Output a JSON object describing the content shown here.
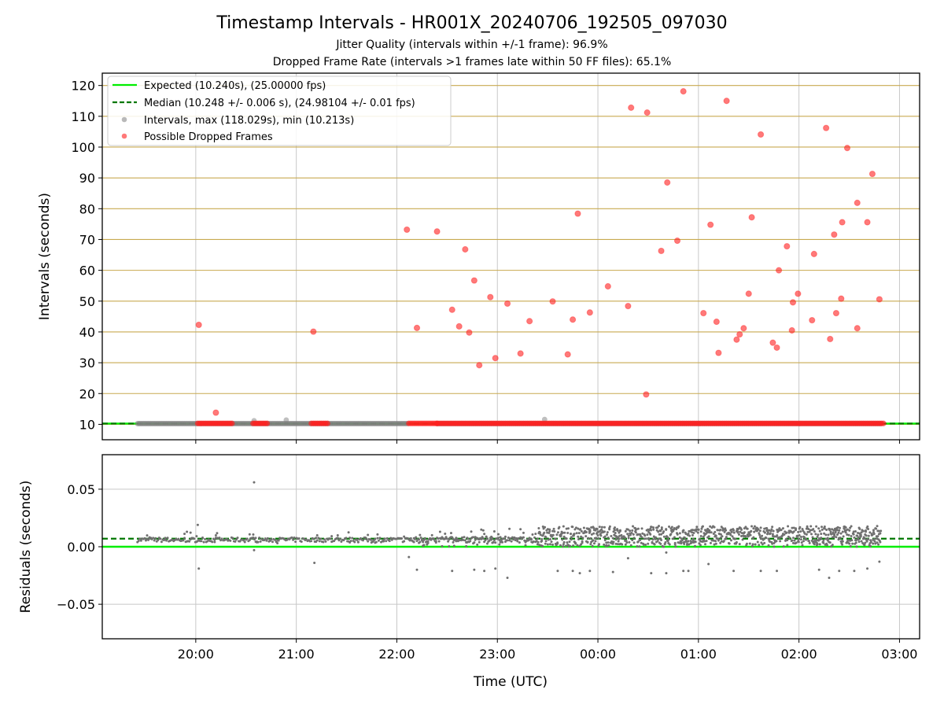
{
  "chart_data": {
    "type": "scatter",
    "title": "Timestamp Intervals - HR001X_20240706_192505_097030",
    "subtitle_1": "Jitter Quality (intervals within +/-1 frame): 96.9%",
    "subtitle_2": "Dropped Frame Rate (intervals >1 frames late within 50 FF files): 65.1%",
    "xlabel": "Time (UTC)",
    "x_ticks": [
      "20:00",
      "21:00",
      "22:00",
      "23:00",
      "00:00",
      "01:00",
      "02:00",
      "03:00"
    ],
    "x_range_hours": [
      19.07,
      27.2
    ],
    "top_panel": {
      "ylabel": "Intervals (seconds)",
      "ylim": [
        5,
        124
      ],
      "y_ticks": [
        10,
        20,
        30,
        40,
        50,
        60,
        70,
        80,
        90,
        100,
        110,
        120
      ],
      "horizontal_grid": true,
      "legend_placement": "upper-left",
      "expected_interval": 10.24,
      "median_interval": 10.248,
      "legend": {
        "expected": "Expected (10.240s), (25.00000 fps)",
        "median": "Median (10.248 +/- 0.006 s), (24.98104 +/- 0.01 fps)",
        "intervals": "Intervals, max (118.029s), min (10.213s)",
        "dropped": "Possible Dropped Frames"
      },
      "interval_coverage_hours": [
        [
          19.42,
          22.12
        ],
        [
          22.4,
          26.82
        ]
      ],
      "gray_outliers": [
        [
          20.58,
          11.2
        ],
        [
          20.9,
          11.4
        ],
        [
          23.47,
          11.6
        ]
      ],
      "dropped_frames": [
        [
          20.03,
          42.3
        ],
        [
          20.2,
          13.8
        ],
        [
          21.17,
          40.1
        ],
        [
          22.1,
          73.2
        ],
        [
          22.2,
          41.3
        ],
        [
          22.4,
          72.6
        ],
        [
          22.55,
          47.2
        ],
        [
          22.62,
          41.8
        ],
        [
          22.68,
          66.8
        ],
        [
          22.72,
          39.8
        ],
        [
          22.77,
          56.7
        ],
        [
          22.82,
          29.2
        ],
        [
          22.93,
          51.3
        ],
        [
          22.98,
          31.5
        ],
        [
          23.1,
          49.2
        ],
        [
          23.23,
          33.0
        ],
        [
          23.32,
          43.5
        ],
        [
          23.55,
          49.9
        ],
        [
          23.7,
          32.7
        ],
        [
          23.75,
          44.0
        ],
        [
          23.8,
          78.4
        ],
        [
          23.92,
          46.3
        ],
        [
          24.1,
          54.8
        ],
        [
          24.3,
          48.4
        ],
        [
          24.33,
          112.8
        ],
        [
          24.48,
          19.7
        ],
        [
          24.49,
          111.2
        ],
        [
          24.63,
          66.3
        ],
        [
          24.69,
          88.5
        ],
        [
          24.79,
          69.6
        ],
        [
          24.85,
          118.1
        ],
        [
          25.05,
          46.1
        ],
        [
          25.12,
          74.8
        ],
        [
          25.18,
          43.3
        ],
        [
          25.2,
          33.2
        ],
        [
          25.28,
          115.0
        ],
        [
          25.38,
          37.5
        ],
        [
          25.41,
          39.2
        ],
        [
          25.45,
          41.2
        ],
        [
          25.5,
          52.4
        ],
        [
          25.53,
          77.2
        ],
        [
          25.62,
          104.1
        ],
        [
          25.74,
          36.5
        ],
        [
          25.78,
          34.9
        ],
        [
          25.8,
          60.0
        ],
        [
          25.88,
          67.8
        ],
        [
          25.93,
          40.5
        ],
        [
          25.94,
          49.6
        ],
        [
          25.99,
          52.4
        ],
        [
          26.13,
          43.8
        ],
        [
          26.15,
          65.3
        ],
        [
          26.27,
          106.2
        ],
        [
          26.31,
          37.7
        ],
        [
          26.35,
          71.6
        ],
        [
          26.37,
          46.1
        ],
        [
          26.42,
          50.8
        ],
        [
          26.43,
          75.6
        ],
        [
          26.48,
          99.7
        ],
        [
          26.58,
          41.2
        ],
        [
          26.58,
          81.9
        ],
        [
          26.68,
          75.6
        ],
        [
          26.73,
          91.3
        ],
        [
          26.8,
          50.6
        ]
      ],
      "baseline_dropped_coverage_hours": [
        [
          20.02,
          20.36
        ],
        [
          20.57,
          20.72
        ],
        [
          21.15,
          21.32
        ],
        [
          22.12,
          22.4
        ],
        [
          22.4,
          26.84
        ]
      ]
    },
    "bottom_panel": {
      "ylabel": "Residuals (seconds)",
      "ylim": [
        -0.08,
        0.08
      ],
      "y_ticks": [
        "0.05",
        "0.00",
        "−0.05"
      ],
      "y_tick_values": [
        0.05,
        0.0,
        -0.05
      ],
      "median_residual": 0.007,
      "notable_residuals": [
        [
          20.02,
          0.019
        ],
        [
          20.03,
          -0.019
        ],
        [
          20.58,
          0.056
        ],
        [
          20.58,
          -0.003
        ],
        [
          21.18,
          -0.014
        ],
        [
          22.12,
          -0.009
        ],
        [
          22.2,
          -0.02
        ],
        [
          22.55,
          -0.021
        ],
        [
          22.77,
          -0.02
        ],
        [
          22.87,
          -0.021
        ],
        [
          22.98,
          -0.019
        ],
        [
          23.1,
          -0.027
        ],
        [
          23.6,
          -0.021
        ],
        [
          23.75,
          -0.021
        ],
        [
          23.82,
          -0.023
        ],
        [
          23.92,
          -0.021
        ],
        [
          24.15,
          -0.022
        ],
        [
          24.3,
          -0.01
        ],
        [
          24.53,
          -0.023
        ],
        [
          24.68,
          -0.023
        ],
        [
          24.85,
          -0.021
        ],
        [
          24.9,
          -0.021
        ],
        [
          25.1,
          -0.015
        ],
        [
          25.35,
          -0.021
        ],
        [
          25.62,
          -0.021
        ],
        [
          25.78,
          -0.021
        ],
        [
          26.2,
          -0.02
        ],
        [
          26.3,
          -0.027
        ],
        [
          26.4,
          -0.021
        ],
        [
          26.55,
          -0.021
        ],
        [
          26.68,
          -0.019
        ],
        [
          26.8,
          -0.013
        ],
        [
          24.68,
          -0.005
        ]
      ]
    },
    "colors": {
      "expected": "#00ee00",
      "median": "#007700",
      "intervals": "#808080",
      "dropped": "#ff2020",
      "hgrid_top": "#c8aa50",
      "grid": "#c8c8c8"
    }
  }
}
